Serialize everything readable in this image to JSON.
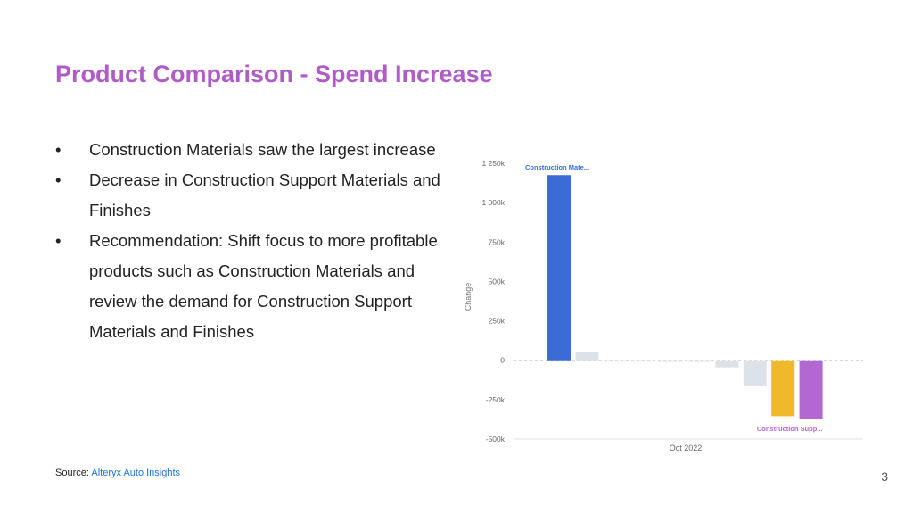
{
  "slide": {
    "title": "Product Comparison - Spend Increase",
    "bullets": [
      "Construction Materials saw the largest increase",
      "Decrease in Construction Support Materials and Finishes",
      "Recommendation: Shift focus to more profitable products such as Construction Materials and review the demand for Construction Support Materials and Finishes"
    ],
    "bullet_glyph": "•",
    "source_label": "Source:",
    "source_link": "Alteryx Auto Insights",
    "page_number": "3"
  },
  "chart_data": {
    "type": "bar",
    "ylabel": "Change",
    "xlabel": "",
    "x_tick": "Oct 2022",
    "ylim": [
      -500000,
      1250000
    ],
    "yticks": [
      1250000,
      1000000,
      750000,
      500000,
      250000,
      0,
      -250000,
      -500000
    ],
    "ytick_labels": [
      "1 250k",
      "1 000k",
      "750k",
      "500k",
      "250k",
      "0",
      "-250k",
      "-500k"
    ],
    "values": [
      1175000,
      55000,
      -5000,
      -5000,
      -10000,
      -10000,
      -45000,
      -160000,
      -355000,
      -370000
    ],
    "colors": [
      "#3b6bd4",
      "#dde1e8",
      "#dde1e8",
      "#dde1e8",
      "#dde1e8",
      "#dde1e8",
      "#dde1e8",
      "#dde1e8",
      "#f0b92a",
      "#b367d1"
    ],
    "annotations": [
      {
        "bar_index": 0,
        "text": "Construction Mate...",
        "color": "#3b6bd4"
      },
      {
        "bar_index": 9,
        "text": "Construction Supp...",
        "color": "#b367d1"
      }
    ],
    "grid": false,
    "zero_line": "dashed"
  }
}
